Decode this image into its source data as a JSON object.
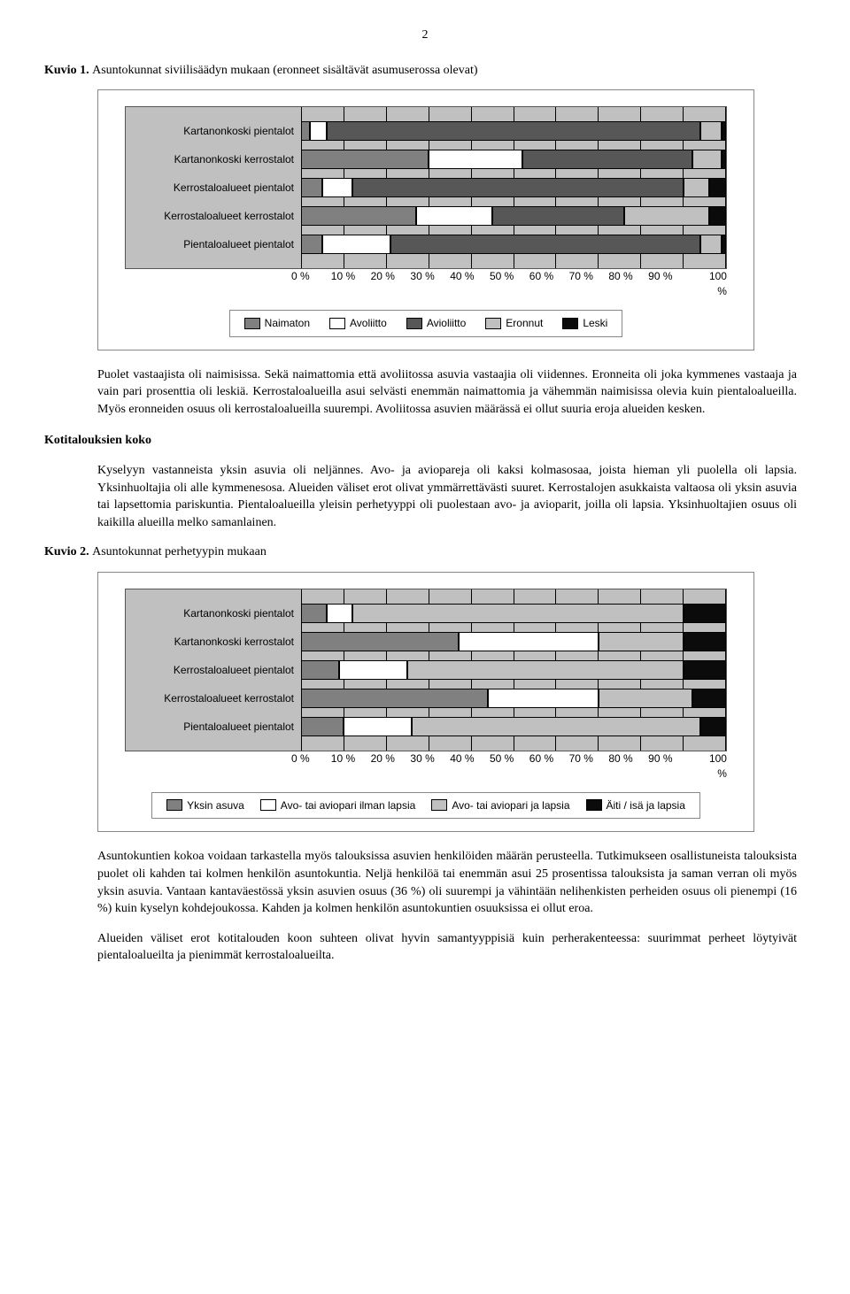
{
  "page_number": "2",
  "caption1_prefix": "Kuvio 1. ",
  "caption1": "Asuntokunnat siviilisäädyn mukaan (eronneet sisältävät asumuserossa olevat)",
  "chart1": {
    "type": "stacked-bar-horizontal",
    "background_color": "#c0c0c0",
    "grid_color": "#000000",
    "categories": [
      "Kartanonkoski pientalot",
      "Kartanonkoski kerrostalot",
      "Kerrostaloalueet pientalot",
      "Kerrostaloalueet kerrostalot",
      "Pientaloalueet pientalot"
    ],
    "series_labels": [
      "Naimaton",
      "Avoliitto",
      "Avioliitto",
      "Eronnut",
      "Leski"
    ],
    "series_colors": [
      "#808080",
      "#ffffff",
      "#575757",
      "#c0c0c0",
      "#0b0b0b"
    ],
    "data": [
      [
        2,
        4,
        88,
        5,
        1
      ],
      [
        30,
        22,
        40,
        7,
        1
      ],
      [
        5,
        7,
        78,
        6,
        4
      ],
      [
        27,
        18,
        31,
        20,
        4
      ],
      [
        5,
        16,
        73,
        5,
        1
      ]
    ],
    "xticks": [
      "0 %",
      "10 %",
      "20 %",
      "30 %",
      "40 %",
      "50 %",
      "60 %",
      "70 %",
      "80 %",
      "90 %",
      "100 %"
    ],
    "label_fontsize": 12,
    "font_family": "Arial"
  },
  "para1": "Puolet vastaajista oli naimisissa. Sekä naimattomia että avoliitossa asuvia vastaajia oli viidennes. Eronneita oli joka kymmenes vastaaja ja vain pari prosenttia oli leskiä. Kerrostaloalueilla asui selvästi enemmän naimattomia ja vähemmän naimisissa olevia kuin pientaloalueilla. Myös eronneiden osuus oli kerrostaloalueilla suurempi. Avoliitossa asuvien määrässä ei ollut suuria eroja alueiden kesken.",
  "section_head": "Kotitalouksien koko",
  "para2": "Kyselyyn vastanneista yksin asuvia oli neljännes. Avo- ja aviopareja oli kaksi kolmasosaa, joista hieman yli puolella oli lapsia. Yksinhuoltajia oli alle kymmenesosa. Alueiden väliset erot olivat ymmärrettävästi suuret. Kerrostalojen asukkaista valtaosa oli yksin asuvia tai lapsettomia pariskuntia. Pientaloalueilla yleisin perhetyyppi oli puolestaan avo- ja avioparit, joilla oli lapsia. Yksinhuoltajien osuus oli kaikilla alueilla melko samanlainen.",
  "caption2_prefix": "Kuvio 2. ",
  "caption2": "Asuntokunnat perhetyypin mukaan",
  "chart2": {
    "type": "stacked-bar-horizontal",
    "background_color": "#c0c0c0",
    "grid_color": "#000000",
    "categories": [
      "Kartanonkoski pientalot",
      "Kartanonkoski kerrostalot",
      "Kerrostaloalueet pientalot",
      "Kerrostaloalueet kerrostalot",
      "Pientaloalueet pientalot"
    ],
    "series_labels": [
      "Yksin asuva",
      "Avo- tai aviopari ilman lapsia",
      "Avo- tai aviopari ja lapsia",
      "Äiti / isä ja lapsia"
    ],
    "series_colors": [
      "#808080",
      "#ffffff",
      "#c0c0c0",
      "#0b0b0b"
    ],
    "data": [
      [
        6,
        6,
        78,
        10
      ],
      [
        37,
        33,
        20,
        10
      ],
      [
        9,
        16,
        65,
        10
      ],
      [
        44,
        26,
        22,
        8
      ],
      [
        10,
        16,
        68,
        6
      ]
    ],
    "xticks": [
      "0 %",
      "10 %",
      "20 %",
      "30 %",
      "40 %",
      "50 %",
      "60 %",
      "70 %",
      "80 %",
      "90 %",
      "100 %"
    ],
    "label_fontsize": 12,
    "font_family": "Arial"
  },
  "para3": "Asuntokuntien kokoa voidaan tarkastella myös talouksissa asuvien henkilöiden määrän perusteella. Tutkimukseen osallistuneista talouksista puolet oli kahden tai kolmen henkilön asuntokuntia. Neljä henkilöä tai enemmän asui 25 prosentissa talouksista ja saman verran oli myös yksin asuvia. Vantaan kantaväestössä yksin asuvien osuus (36 %) oli suurempi ja vähintään nelihenkisten perheiden osuus oli pienempi (16 %) kuin kyselyn kohdejoukossa. Kahden ja kolmen henkilön asuntokuntien osuuksissa ei ollut eroa.",
  "para4": "Alueiden väliset erot kotitalouden koon suhteen olivat hyvin samantyyppisiä kuin perherakenteessa: suurimmat perheet löytyivät pientaloalueilta ja pienimmät kerrostaloalueilta."
}
